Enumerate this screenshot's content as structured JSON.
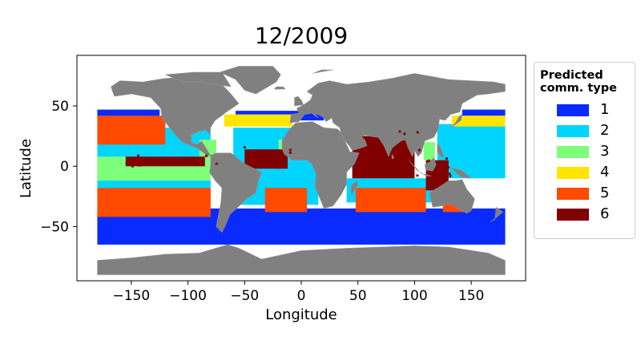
{
  "title": "12/2009",
  "axes": {
    "xlabel": "Longitude",
    "ylabel": "Latitude",
    "xticks": [
      -150,
      -100,
      -50,
      0,
      50,
      100,
      150
    ],
    "xtick_labels": [
      "−150",
      "−100",
      "−50",
      "0",
      "50",
      "100",
      "150"
    ],
    "yticks": [
      50,
      0,
      -50
    ],
    "ytick_labels": [
      "50",
      "0",
      "−50"
    ],
    "xlim": [
      -198,
      198
    ],
    "ylim": [
      -95,
      92
    ]
  },
  "legend": {
    "title": "Predicted\ncomm. type",
    "placement": "outside-right",
    "items": [
      {
        "label": "1",
        "color": "#0a2bff"
      },
      {
        "label": "2",
        "color": "#00d4ff"
      },
      {
        "label": "3",
        "color": "#7dff7a"
      },
      {
        "label": "4",
        "color": "#ffe500"
      },
      {
        "label": "5",
        "color": "#ff4a00"
      },
      {
        "label": "6",
        "color": "#800000"
      }
    ]
  },
  "map": {
    "land_color": "#808080",
    "ocean_background": "#ffffff"
  },
  "chart_data": {
    "type": "scatter",
    "title": "12/2009",
    "xlabel": "Longitude",
    "ylabel": "Latitude",
    "xlim": [
      -198,
      198
    ],
    "ylim": [
      -95,
      92
    ],
    "series": [
      {
        "name": "1",
        "color": "#0a2bff"
      },
      {
        "name": "2",
        "color": "#00d4ff"
      },
      {
        "name": "3",
        "color": "#7dff7a"
      },
      {
        "name": "4",
        "color": "#ffe500"
      },
      {
        "name": "5",
        "color": "#ff4a00"
      },
      {
        "name": "6",
        "color": "#800000"
      }
    ],
    "regions": [
      {
        "class": "1",
        "lon": [
          -180,
          180
        ],
        "lat": [
          -65,
          -35
        ]
      },
      {
        "class": "1",
        "lon": [
          -180,
          -125
        ],
        "lat": [
          32,
          47
        ]
      },
      {
        "class": "1",
        "lon": [
          142,
          180
        ],
        "lat": [
          38,
          47
        ]
      },
      {
        "class": "1",
        "lon": [
          -58,
          20
        ],
        "lat": [
          38,
          46
        ]
      },
      {
        "class": "2",
        "lon": [
          -180,
          -80
        ],
        "lat": [
          -30,
          32
        ]
      },
      {
        "class": "2",
        "lon": [
          120,
          180
        ],
        "lat": [
          -10,
          35
        ]
      },
      {
        "class": "2",
        "lon": [
          -60,
          15
        ],
        "lat": [
          -32,
          32
        ]
      },
      {
        "class": "2",
        "lon": [
          40,
          120
        ],
        "lat": [
          -30,
          -10
        ]
      },
      {
        "class": "3",
        "lon": [
          -180,
          -80
        ],
        "lat": [
          -12,
          8
        ]
      },
      {
        "class": "3",
        "lon": [
          -90,
          -75
        ],
        "lat": [
          5,
          22
        ]
      },
      {
        "class": "3",
        "lon": [
          -20,
          -10
        ],
        "lat": [
          10,
          22
        ]
      },
      {
        "class": "3",
        "lon": [
          50,
          62
        ],
        "lat": [
          18,
          28
        ]
      },
      {
        "class": "3",
        "lon": [
          108,
          118
        ],
        "lat": [
          5,
          20
        ]
      },
      {
        "class": "4",
        "lon": [
          -68,
          -8
        ],
        "lat": [
          33,
          43
        ]
      },
      {
        "class": "4",
        "lon": [
          133,
          180
        ],
        "lat": [
          33,
          42
        ]
      },
      {
        "class": "5",
        "lon": [
          -180,
          -120
        ],
        "lat": [
          18,
          42
        ]
      },
      {
        "class": "5",
        "lon": [
          -180,
          -80
        ],
        "lat": [
          -42,
          -18
        ]
      },
      {
        "class": "5",
        "lon": [
          -32,
          5
        ],
        "lat": [
          -38,
          -18
        ]
      },
      {
        "class": "5",
        "lon": [
          48,
          110
        ],
        "lat": [
          -38,
          -18
        ]
      },
      {
        "class": "5",
        "lon": [
          125,
          145
        ],
        "lat": [
          -38,
          -28
        ]
      },
      {
        "class": "6",
        "lon": [
          -50,
          -12
        ],
        "lat": [
          -2,
          14
        ]
      },
      {
        "class": "6",
        "lon": [
          45,
          100
        ],
        "lat": [
          -10,
          25
        ]
      },
      {
        "class": "6",
        "lon": [
          110,
          130
        ],
        "lat": [
          -20,
          5
        ]
      },
      {
        "class": "6",
        "lon": [
          -155,
          -85
        ],
        "lat": [
          0,
          8
        ]
      }
    ]
  }
}
